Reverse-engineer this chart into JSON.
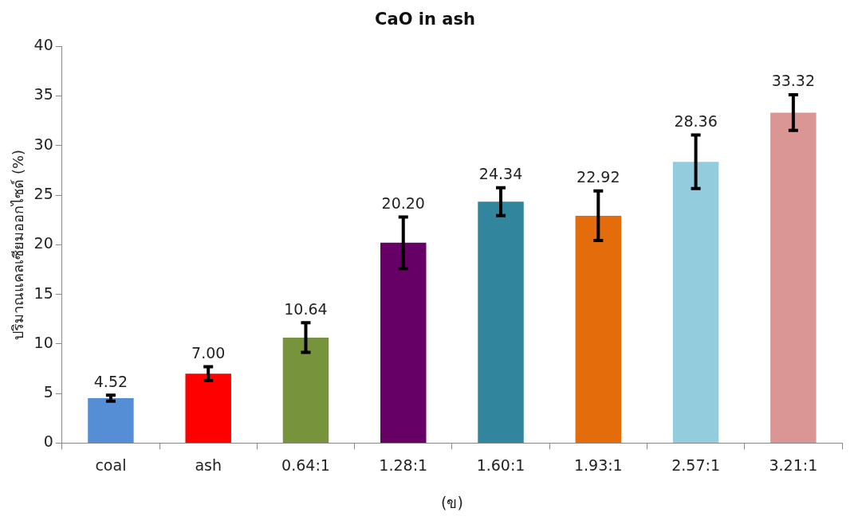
{
  "chart_data": {
    "type": "bar",
    "title": "CaO in ash",
    "xlabel": "(ข)",
    "ylabel": "ปริมาณแคลเซียมออกไซด์ (%)",
    "categories": [
      "coal",
      "ash",
      "0.64:1",
      "1.28:1",
      "1.60:1",
      "1.93:1",
      "2.57:1",
      "3.21:1"
    ],
    "values": [
      4.52,
      7.0,
      10.64,
      20.2,
      24.34,
      22.92,
      28.36,
      33.32
    ],
    "value_labels": [
      "4.52",
      "7.00",
      "10.64",
      "20.20",
      "24.34",
      "22.92",
      "28.36",
      "33.32"
    ],
    "errors": [
      0.3,
      0.7,
      1.5,
      2.6,
      1.4,
      2.5,
      2.7,
      1.8
    ],
    "colors": [
      "#558ed5",
      "#ff0000",
      "#77933c",
      "#660066",
      "#31859c",
      "#e46c0a",
      "#93cddd",
      "#d99694"
    ],
    "ylim": [
      0,
      40
    ],
    "yticks": [
      0,
      5,
      10,
      15,
      20,
      25,
      30,
      35,
      40
    ],
    "grid": false,
    "legend": false
  }
}
